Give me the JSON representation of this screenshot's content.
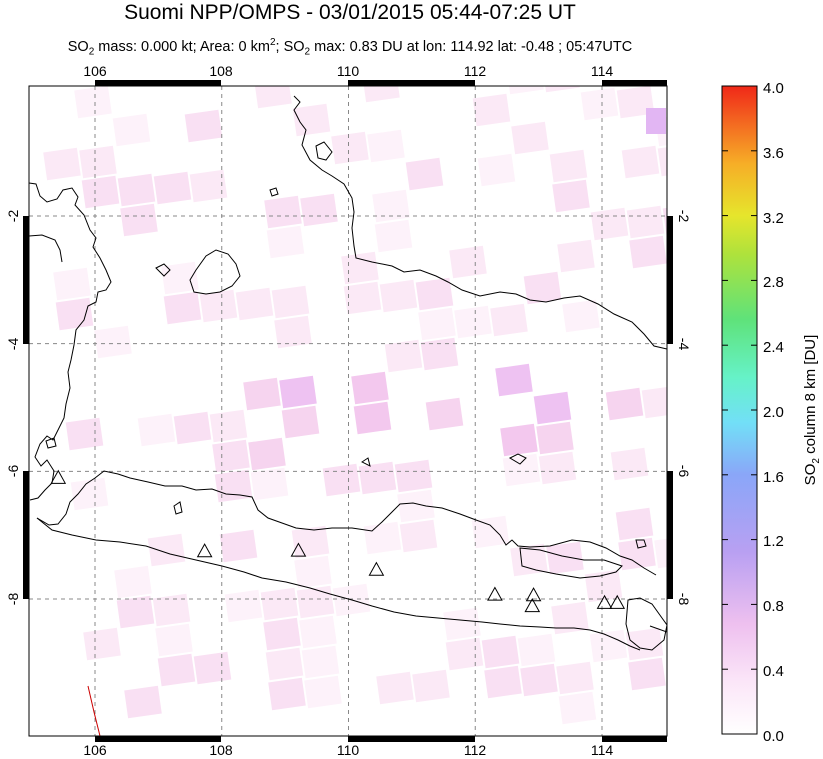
{
  "title": "Suomi NPP/OMPS - 03/01/2015 05:44-07:25 UT",
  "subtitle": {
    "p1": "SO",
    "p1_sub": "2",
    "p2": " mass: 0.000 kt; Area: 0 km",
    "p2_sup": "2",
    "p3": "; SO",
    "p3_sub": "2",
    "p4": " max: 0.83 DU at lon: 114.92 lat: -0.48 ; 05:47UTC"
  },
  "map": {
    "lon_range": [
      105,
      115
    ],
    "lat_range": [
      -10,
      -0.2
    ],
    "lon_ticks": [
      "106",
      "108",
      "110",
      "112",
      "114"
    ],
    "lat_ticks": [
      "-2",
      "-4",
      "-6",
      "-8"
    ],
    "grid": "dashed",
    "volcano_markers": [
      {
        "lon": 105.42,
        "lat": -6.1
      },
      {
        "lon": 107.73,
        "lat": -7.25
      },
      {
        "lon": 109.21,
        "lat": -7.24
      },
      {
        "lon": 110.44,
        "lat": -7.54
      },
      {
        "lon": 112.31,
        "lat": -7.93
      },
      {
        "lon": 112.92,
        "lat": -7.94
      },
      {
        "lon": 112.9,
        "lat": -8.11
      },
      {
        "lon": 114.04,
        "lat": -8.06
      },
      {
        "lon": 114.24,
        "lat": -8.06
      }
    ]
  },
  "colorbar": {
    "label_main": "SO",
    "label_sub": "2",
    "label_rest": " column 8 km [DU]",
    "ticks": [
      "4.0",
      "3.6",
      "3.2",
      "2.8",
      "2.4",
      "2.0",
      "1.6",
      "1.2",
      "0.8",
      "0.4",
      "0.0"
    ],
    "range": [
      0,
      4
    ],
    "colors": [
      "#ffffff",
      "#f7d7f3",
      "#e6a8ec",
      "#b89cf0",
      "#8aa4f8",
      "#6fd8f6",
      "#66f4cf",
      "#5fe37f",
      "#a8e03c",
      "#e8e82a",
      "#f7b426",
      "#f46a1f",
      "#f02818"
    ]
  }
}
